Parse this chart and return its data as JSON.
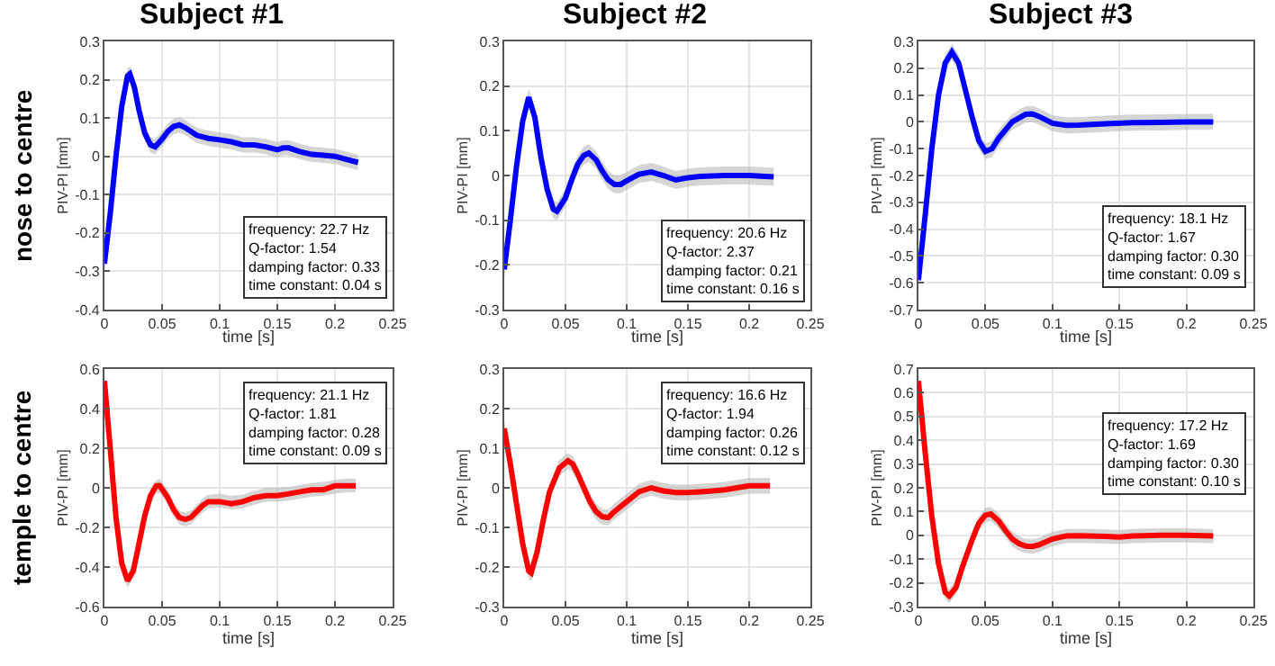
{
  "chart_data": [
    {
      "type": "line",
      "title": "Subject #1",
      "xlabel": "time [s]",
      "ylabel": "PIV-PI [mm]",
      "xlim": [
        0,
        0.25
      ],
      "xticks": [
        0,
        0.05,
        0.1,
        0.15,
        0.2,
        0.25
      ],
      "ylim": [
        -0.4,
        0.3
      ],
      "yticks": [
        -0.4,
        -0.3,
        -0.2,
        -0.1,
        0,
        0.1,
        0.2,
        0.3
      ],
      "grid": true,
      "annotations": [
        "frequency: 22.7 Hz\nQ-factor: 1.54\ndamping factor: 0.33\ntime constant: 0.04 s",
        "nose to centre"
      ],
      "series": [
        {
          "color": "#0000ff",
          "x": [
            0,
            0.005,
            0.01,
            0.015,
            0.02,
            0.022,
            0.026,
            0.03,
            0.035,
            0.04,
            0.044,
            0.05,
            0.055,
            0.06,
            0.065,
            0.07,
            0.08,
            0.09,
            0.1,
            0.11,
            0.12,
            0.13,
            0.14,
            0.15,
            0.155,
            0.16,
            0.17,
            0.18,
            0.19,
            0.2,
            0.21,
            0.22
          ],
          "values": [
            -0.28,
            -0.15,
            0,
            0.13,
            0.21,
            0.215,
            0.18,
            0.12,
            0.06,
            0.03,
            0.025,
            0.045,
            0.065,
            0.078,
            0.082,
            0.075,
            0.055,
            0.047,
            0.043,
            0.038,
            0.03,
            0.03,
            0.025,
            0.017,
            0.022,
            0.022,
            0.012,
            0.005,
            0.003,
            0,
            -0.008,
            -0.016
          ],
          "lower": [
            -0.3,
            -0.17,
            -0.02,
            0.11,
            0.19,
            0.195,
            0.16,
            0.1,
            0.04,
            0.01,
            0.005,
            0.025,
            0.045,
            0.058,
            0.062,
            0.055,
            0.035,
            0.027,
            0.023,
            0.018,
            0.01,
            0.01,
            0.005,
            -0.003,
            0.002,
            0.002,
            -0.008,
            -0.015,
            -0.017,
            -0.02,
            -0.028,
            -0.036
          ],
          "upper": [
            -0.26,
            -0.13,
            0.02,
            0.15,
            0.23,
            0.235,
            0.2,
            0.14,
            0.08,
            0.05,
            0.045,
            0.065,
            0.085,
            0.098,
            0.102,
            0.095,
            0.075,
            0.067,
            0.063,
            0.058,
            0.05,
            0.05,
            0.045,
            0.037,
            0.042,
            0.042,
            0.032,
            0.025,
            0.023,
            0.02,
            0.012,
            0.004
          ]
        }
      ]
    },
    {
      "type": "line",
      "title": "Subject #2",
      "xlabel": "time [s]",
      "ylabel": "PIV-PI [mm]",
      "xlim": [
        0,
        0.25
      ],
      "xticks": [
        0,
        0.05,
        0.1,
        0.15,
        0.2,
        0.25
      ],
      "ylim": [
        -0.3,
        0.3
      ],
      "yticks": [
        -0.3,
        -0.2,
        -0.1,
        0,
        0.1,
        0.2,
        0.3
      ],
      "grid": true,
      "annotations": [
        "frequency: 20.6 Hz\nQ-factor: 2.37\ndamping factor: 0.21\ntime constant: 0.16 s"
      ],
      "series": [
        {
          "color": "#0000ff",
          "x": [
            0,
            0.005,
            0.01,
            0.015,
            0.02,
            0.025,
            0.03,
            0.035,
            0.04,
            0.043,
            0.05,
            0.055,
            0.06,
            0.065,
            0.069,
            0.075,
            0.08,
            0.085,
            0.09,
            0.095,
            0.1,
            0.11,
            0.12,
            0.13,
            0.14,
            0.15,
            0.16,
            0.18,
            0.2,
            0.22
          ],
          "values": [
            -0.21,
            -0.1,
            0.02,
            0.12,
            0.175,
            0.13,
            0.04,
            -0.03,
            -0.075,
            -0.08,
            -0.05,
            -0.01,
            0.025,
            0.045,
            0.05,
            0.035,
            0.01,
            -0.01,
            -0.02,
            -0.02,
            -0.012,
            0.003,
            0.008,
            0,
            -0.01,
            -0.005,
            -0.002,
            0,
            0,
            -0.003
          ],
          "lower": [
            -0.23,
            -0.12,
            0,
            0.1,
            0.155,
            0.11,
            0.02,
            -0.05,
            -0.095,
            -0.1,
            -0.07,
            -0.03,
            0.005,
            0.025,
            0.03,
            0.015,
            -0.01,
            -0.03,
            -0.04,
            -0.04,
            -0.032,
            -0.017,
            -0.012,
            -0.02,
            -0.03,
            -0.025,
            -0.022,
            -0.02,
            -0.02,
            -0.023
          ],
          "upper": [
            -0.19,
            -0.08,
            0.04,
            0.14,
            0.195,
            0.15,
            0.06,
            -0.01,
            -0.055,
            -0.06,
            -0.03,
            0.01,
            0.045,
            0.065,
            0.07,
            0.055,
            0.03,
            0.01,
            0,
            0,
            0.008,
            0.023,
            0.028,
            0.02,
            0.01,
            0.015,
            0.018,
            0.02,
            0.02,
            0.017
          ]
        }
      ]
    },
    {
      "type": "line",
      "title": "Subject #3",
      "xlabel": "time [s]",
      "ylabel": "PIV-PI [mm]",
      "xlim": [
        0,
        0.25
      ],
      "xticks": [
        0,
        0.05,
        0.1,
        0.15,
        0.2,
        0.25
      ],
      "ylim": [
        -0.7,
        0.3
      ],
      "yticks": [
        -0.7,
        -0.6,
        -0.5,
        -0.4,
        -0.3,
        -0.2,
        -0.1,
        0,
        0.1,
        0.2,
        0.3
      ],
      "grid": true,
      "annotations": [
        "frequency: 18.1 Hz\nQ-factor: 1.67\ndamping factor: 0.30\ntime constant: 0.09 s"
      ],
      "series": [
        {
          "color": "#0000ff",
          "x": [
            0,
            0.005,
            0.01,
            0.015,
            0.02,
            0.025,
            0.03,
            0.035,
            0.04,
            0.045,
            0.05,
            0.055,
            0.06,
            0.07,
            0.08,
            0.085,
            0.09,
            0.1,
            0.11,
            0.12,
            0.14,
            0.16,
            0.18,
            0.2,
            0.22
          ],
          "values": [
            -0.59,
            -0.35,
            -0.1,
            0.1,
            0.22,
            0.26,
            0.22,
            0.12,
            0.02,
            -0.07,
            -0.11,
            -0.1,
            -0.06,
            0,
            0.028,
            0.03,
            0.02,
            -0.005,
            -0.013,
            -0.012,
            -0.007,
            -0.003,
            -0.002,
            0,
            0
          ],
          "lower": [
            -0.62,
            -0.38,
            -0.13,
            0.07,
            0.19,
            0.23,
            0.19,
            0.09,
            -0.01,
            -0.1,
            -0.14,
            -0.13,
            -0.09,
            -0.03,
            -0.002,
            0,
            -0.01,
            -0.035,
            -0.043,
            -0.042,
            -0.037,
            -0.033,
            -0.032,
            -0.03,
            -0.03
          ],
          "upper": [
            -0.56,
            -0.32,
            -0.07,
            0.13,
            0.25,
            0.29,
            0.25,
            0.15,
            0.05,
            -0.04,
            -0.08,
            -0.07,
            -0.03,
            0.03,
            0.058,
            0.06,
            0.05,
            0.025,
            0.017,
            0.018,
            0.023,
            0.027,
            0.028,
            0.03,
            0.03
          ]
        }
      ]
    },
    {
      "type": "line",
      "xlabel": "time [s]",
      "ylabel": "PIV-PI [mm]",
      "xlim": [
        0,
        0.25
      ],
      "xticks": [
        0,
        0.05,
        0.1,
        0.15,
        0.2,
        0.25
      ],
      "ylim": [
        -0.6,
        0.6
      ],
      "yticks": [
        -0.6,
        -0.4,
        -0.2,
        0,
        0.2,
        0.4,
        0.6
      ],
      "grid": true,
      "annotations": [
        "frequency: 21.1 Hz\nQ-factor: 1.81\ndamping factor: 0.28\ntime constant: 0.09 s",
        "temple to centre"
      ],
      "series": [
        {
          "color": "#ff0000",
          "x": [
            0,
            0.005,
            0.01,
            0.015,
            0.02,
            0.025,
            0.03,
            0.035,
            0.04,
            0.045,
            0.048,
            0.055,
            0.06,
            0.065,
            0.07,
            0.075,
            0.08,
            0.085,
            0.09,
            0.1,
            0.11,
            0.12,
            0.13,
            0.14,
            0.15,
            0.16,
            0.17,
            0.18,
            0.19,
            0.2,
            0.21,
            0.218
          ],
          "values": [
            0.54,
            0.2,
            -0.15,
            -0.38,
            -0.47,
            -0.42,
            -0.28,
            -0.14,
            -0.04,
            0.01,
            0.01,
            -0.05,
            -0.11,
            -0.15,
            -0.16,
            -0.15,
            -0.12,
            -0.09,
            -0.07,
            -0.07,
            -0.08,
            -0.07,
            -0.05,
            -0.04,
            -0.04,
            -0.03,
            -0.02,
            -0.01,
            -0.01,
            0.01,
            0.01,
            0.01
          ],
          "lower": [
            0.505,
            0.165,
            -0.185,
            -0.415,
            -0.505,
            -0.455,
            -0.315,
            -0.175,
            -0.075,
            -0.03,
            -0.025,
            -0.085,
            -0.145,
            -0.185,
            -0.195,
            -0.185,
            -0.155,
            -0.125,
            -0.105,
            -0.1,
            -0.11,
            -0.105,
            -0.085,
            -0.07,
            -0.07,
            -0.065,
            -0.055,
            -0.045,
            -0.04,
            -0.03,
            -0.023,
            -0.023
          ],
          "upper": [
            0.575,
            0.235,
            -0.115,
            -0.345,
            -0.435,
            -0.385,
            -0.245,
            -0.105,
            -0.005,
            0.04,
            0.045,
            -0.015,
            -0.075,
            -0.115,
            -0.125,
            -0.115,
            -0.085,
            -0.055,
            -0.035,
            -0.03,
            -0.04,
            -0.035,
            -0.015,
            0,
            0,
            0.005,
            0.015,
            0.025,
            0.03,
            0.04,
            0.047,
            0.047
          ]
        }
      ]
    },
    {
      "type": "line",
      "xlabel": "time [s]",
      "ylabel": "PIV-PI [mm]",
      "xlim": [
        0,
        0.25
      ],
      "xticks": [
        0,
        0.05,
        0.1,
        0.15,
        0.2,
        0.25
      ],
      "ylim": [
        -0.3,
        0.3
      ],
      "yticks": [
        -0.3,
        -0.2,
        -0.1,
        0,
        0.1,
        0.2,
        0.3
      ],
      "grid": true,
      "annotations": [
        "frequency: 16.6 Hz\nQ-factor: 1.94\ndamping factor: 0.26\ntime constant: 0.12 s"
      ],
      "series": [
        {
          "color": "#ff0000",
          "x": [
            0,
            0.005,
            0.01,
            0.015,
            0.02,
            0.022,
            0.027,
            0.032,
            0.037,
            0.045,
            0.052,
            0.056,
            0.06,
            0.065,
            0.07,
            0.075,
            0.08,
            0.085,
            0.09,
            0.1,
            0.11,
            0.12,
            0.13,
            0.14,
            0.15,
            0.16,
            0.17,
            0.18,
            0.19,
            0.2,
            0.21,
            0.217
          ],
          "values": [
            0.15,
            0.06,
            -0.04,
            -0.14,
            -0.21,
            -0.215,
            -0.16,
            -0.08,
            -0.01,
            0.05,
            0.068,
            0.06,
            0.035,
            0,
            -0.035,
            -0.06,
            -0.073,
            -0.075,
            -0.06,
            -0.035,
            -0.01,
            0,
            -0.008,
            -0.012,
            -0.012,
            -0.01,
            -0.008,
            -0.005,
            0,
            0.005,
            0.005,
            0.005
          ],
          "lower": [
            0.13,
            0.04,
            -0.06,
            -0.16,
            -0.23,
            -0.235,
            -0.18,
            -0.1,
            -0.03,
            0.03,
            0.048,
            0.04,
            0.015,
            -0.02,
            -0.055,
            -0.08,
            -0.093,
            -0.095,
            -0.08,
            -0.055,
            -0.03,
            -0.02,
            -0.028,
            -0.032,
            -0.032,
            -0.03,
            -0.028,
            -0.025,
            -0.02,
            -0.015,
            -0.015,
            -0.015
          ],
          "upper": [
            0.17,
            0.08,
            -0.02,
            -0.12,
            -0.19,
            -0.195,
            -0.14,
            -0.06,
            0.01,
            0.07,
            0.088,
            0.08,
            0.055,
            0.02,
            -0.015,
            -0.04,
            -0.053,
            -0.055,
            -0.04,
            -0.015,
            0.01,
            0.02,
            0.012,
            0.008,
            0.008,
            0.01,
            0.012,
            0.015,
            0.02,
            0.025,
            0.025,
            0.025
          ]
        }
      ]
    },
    {
      "type": "line",
      "xlabel": "time [s]",
      "ylabel": "PIV-PI [mm]",
      "xlim": [
        0,
        0.25
      ],
      "xticks": [
        0,
        0.05,
        0.1,
        0.15,
        0.2,
        0.25
      ],
      "ylim": [
        -0.3,
        0.7
      ],
      "yticks": [
        -0.3,
        -0.2,
        -0.1,
        0,
        0.1,
        0.2,
        0.3,
        0.4,
        0.5,
        0.6,
        0.7
      ],
      "grid": true,
      "annotations": [
        "frequency: 17.2 Hz\nQ-factor: 1.69\ndamping factor: 0.30\ntime constant: 0.10 s"
      ],
      "series": [
        {
          "color": "#ff0000",
          "x": [
            0,
            0.005,
            0.01,
            0.015,
            0.02,
            0.023,
            0.028,
            0.033,
            0.04,
            0.045,
            0.05,
            0.054,
            0.06,
            0.065,
            0.07,
            0.075,
            0.08,
            0.085,
            0.09,
            0.1,
            0.11,
            0.12,
            0.14,
            0.15,
            0.16,
            0.18,
            0.2,
            0.22
          ],
          "values": [
            0.65,
            0.35,
            0.08,
            -0.12,
            -0.24,
            -0.255,
            -0.22,
            -0.13,
            -0.02,
            0.05,
            0.085,
            0.09,
            0.06,
            0.02,
            -0.015,
            -0.035,
            -0.045,
            -0.047,
            -0.04,
            -0.015,
            -0.003,
            -0.002,
            -0.005,
            -0.007,
            -0.003,
            0,
            0,
            -0.003
          ],
          "lower": [
            0.62,
            0.32,
            0.05,
            -0.15,
            -0.27,
            -0.285,
            -0.25,
            -0.16,
            -0.05,
            0.02,
            0.055,
            0.06,
            0.03,
            -0.01,
            -0.045,
            -0.065,
            -0.075,
            -0.077,
            -0.07,
            -0.045,
            -0.033,
            -0.032,
            -0.035,
            -0.037,
            -0.033,
            -0.03,
            -0.03,
            -0.033
          ],
          "upper": [
            0.68,
            0.38,
            0.11,
            -0.09,
            -0.21,
            -0.225,
            -0.19,
            -0.1,
            0.01,
            0.08,
            0.115,
            0.12,
            0.09,
            0.05,
            0.015,
            -0.005,
            -0.015,
            -0.017,
            -0.01,
            0.015,
            0.027,
            0.028,
            0.025,
            0.023,
            0.027,
            0.03,
            0.03,
            0.027
          ]
        }
      ]
    }
  ]
}
